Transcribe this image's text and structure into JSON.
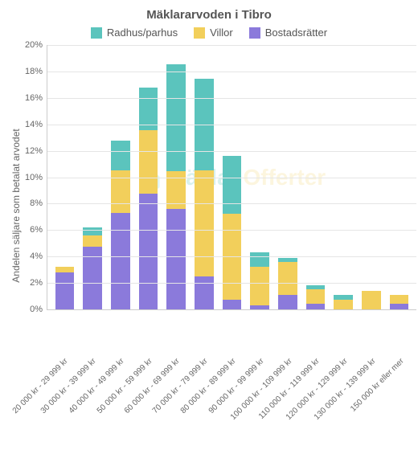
{
  "chart": {
    "type": "stacked-bar",
    "title": "Mäklararvoden i Tibro",
    "title_fontsize": 15,
    "title_color": "#555555",
    "ylabel": "Andelen säljare som betalat arvodet",
    "label_fontsize": 12,
    "label_color": "#666666",
    "background_color": "#ffffff",
    "grid_color": "#e5e5e5",
    "axis_color": "#cccccc",
    "tick_fontsize": 11,
    "tick_color": "#666666",
    "xlabel_fontsize": 10,
    "xlabel_rotation": -45,
    "ylim": [
      0,
      20
    ],
    "ytick_step": 2,
    "ytick_format": "{v}%",
    "bar_width": 0.68,
    "legend_position": "top",
    "legend_fontsize": 13,
    "watermark": {
      "text_part1": "Mäklar",
      "text_part2": "Offerter",
      "color1": "#2cb5a0",
      "color2": "#f2c94c",
      "opacity": 0.18,
      "fontsize": 28
    },
    "series": [
      {
        "key": "bostadsratter",
        "label": "Bostadsrätter",
        "color": "#8b7adb"
      },
      {
        "key": "villor",
        "label": "Villor",
        "color": "#f2cf5b"
      },
      {
        "key": "radhus",
        "label": "Radhus/parhus",
        "color": "#5bc4bd"
      }
    ],
    "legend_order": [
      "radhus",
      "villor",
      "bostadsratter"
    ],
    "categories": [
      "20 000 kr - 29 999 kr",
      "30 000 kr - 39 999 kr",
      "40 000 kr - 49 999 kr",
      "50 000 kr - 59 999 kr",
      "60 000 kr - 69 999 kr",
      "70 000 kr - 79 999 kr",
      "80 000 kr - 89 999 kr",
      "90 000 kr - 99 999 kr",
      "100 000 kr - 109 999 kr",
      "110 000 kr - 119 999 kr",
      "120 000 kr - 129 999 kr",
      "130 000 kr - 139 999 kr",
      "150 000 kr eller mer"
    ],
    "data": {
      "bostadsratter": [
        2.8,
        4.7,
        7.3,
        8.7,
        7.6,
        2.5,
        0.7,
        0.3,
        1.1,
        0.4,
        0.0,
        0.0,
        0.4
      ],
      "villor": [
        0.4,
        0.9,
        3.2,
        4.8,
        2.8,
        8.0,
        6.5,
        2.9,
        2.5,
        1.1,
        0.7,
        1.4,
        0.7
      ],
      "radhus": [
        0.0,
        0.6,
        2.2,
        3.2,
        8.1,
        6.9,
        4.4,
        1.1,
        0.3,
        0.3,
        0.4,
        0.0,
        0.0
      ]
    }
  }
}
